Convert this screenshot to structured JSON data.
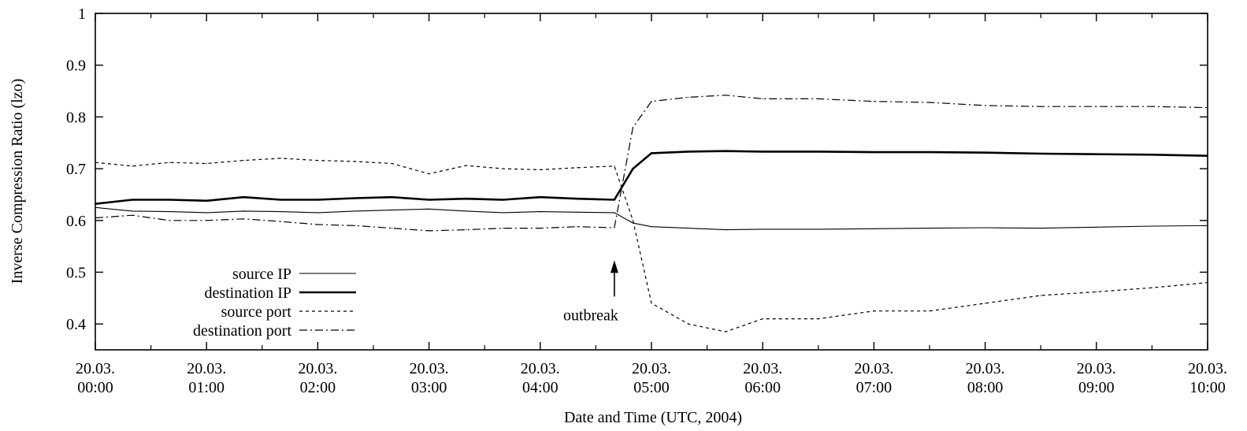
{
  "chart_data": {
    "type": "line",
    "xlabel": "Date and Time (UTC, 2004)",
    "ylabel": "Inverse Compression Ratio (lzo)",
    "xlim": [
      "2004-03-20T00:00",
      "2004-03-20T10:00"
    ],
    "ylim": [
      0.35,
      1.0
    ],
    "grid": false,
    "legend_position": "bottom-left",
    "y_ticks": [
      {
        "value": 0.4,
        "label": "0.4"
      },
      {
        "value": 0.5,
        "label": "0.5"
      },
      {
        "value": 0.6,
        "label": "0.6"
      },
      {
        "value": 0.7,
        "label": "0.7"
      },
      {
        "value": 0.8,
        "label": "0.8"
      },
      {
        "value": 0.9,
        "label": "0.9"
      },
      {
        "value": 1.0,
        "label": "1"
      }
    ],
    "x_ticks": [
      {
        "value": "2004-03-20T00:00",
        "line1": "20.03.",
        "line2": "00:00"
      },
      {
        "value": "2004-03-20T01:00",
        "line1": "20.03.",
        "line2": "01:00"
      },
      {
        "value": "2004-03-20T02:00",
        "line1": "20.03.",
        "line2": "02:00"
      },
      {
        "value": "2004-03-20T03:00",
        "line1": "20.03.",
        "line2": "03:00"
      },
      {
        "value": "2004-03-20T04:00",
        "line1": "20.03.",
        "line2": "04:00"
      },
      {
        "value": "2004-03-20T05:00",
        "line1": "20.03.",
        "line2": "05:00"
      },
      {
        "value": "2004-03-20T06:00",
        "line1": "20.03.",
        "line2": "06:00"
      },
      {
        "value": "2004-03-20T07:00",
        "line1": "20.03.",
        "line2": "07:00"
      },
      {
        "value": "2004-03-20T08:00",
        "line1": "20.03.",
        "line2": "08:00"
      },
      {
        "value": "2004-03-20T09:00",
        "line1": "20.03.",
        "line2": "09:00"
      },
      {
        "value": "2004-03-20T10:00",
        "line1": "20.03.",
        "line2": "10:00"
      }
    ],
    "annotations": [
      {
        "text": "outbreak",
        "x": "2004-03-20T04:40",
        "y": 0.52
      }
    ],
    "series": [
      {
        "name": "source IP",
        "style": "solid-thin",
        "x": [
          "2004-03-20T00:00",
          "2004-03-20T00:20",
          "2004-03-20T00:40",
          "2004-03-20T01:00",
          "2004-03-20T01:20",
          "2004-03-20T01:40",
          "2004-03-20T02:00",
          "2004-03-20T02:20",
          "2004-03-20T02:40",
          "2004-03-20T03:00",
          "2004-03-20T03:20",
          "2004-03-20T03:40",
          "2004-03-20T04:00",
          "2004-03-20T04:20",
          "2004-03-20T04:40",
          "2004-03-20T04:50",
          "2004-03-20T05:00",
          "2004-03-20T05:20",
          "2004-03-20T05:40",
          "2004-03-20T06:00",
          "2004-03-20T06:30",
          "2004-03-20T07:00",
          "2004-03-20T07:30",
          "2004-03-20T08:00",
          "2004-03-20T08:30",
          "2004-03-20T09:00",
          "2004-03-20T09:30",
          "2004-03-20T10:00"
        ],
        "y": [
          0.625,
          0.618,
          0.617,
          0.615,
          0.618,
          0.617,
          0.615,
          0.618,
          0.62,
          0.622,
          0.618,
          0.615,
          0.617,
          0.616,
          0.615,
          0.595,
          0.588,
          0.585,
          0.582,
          0.583,
          0.583,
          0.584,
          0.585,
          0.586,
          0.585,
          0.587,
          0.589,
          0.59
        ]
      },
      {
        "name": "destination IP",
        "style": "solid-thick",
        "x": [
          "2004-03-20T00:00",
          "2004-03-20T00:20",
          "2004-03-20T00:40",
          "2004-03-20T01:00",
          "2004-03-20T01:20",
          "2004-03-20T01:40",
          "2004-03-20T02:00",
          "2004-03-20T02:20",
          "2004-03-20T02:40",
          "2004-03-20T03:00",
          "2004-03-20T03:20",
          "2004-03-20T03:40",
          "2004-03-20T04:00",
          "2004-03-20T04:20",
          "2004-03-20T04:40",
          "2004-03-20T04:50",
          "2004-03-20T05:00",
          "2004-03-20T05:20",
          "2004-03-20T05:40",
          "2004-03-20T06:00",
          "2004-03-20T06:30",
          "2004-03-20T07:00",
          "2004-03-20T07:30",
          "2004-03-20T08:00",
          "2004-03-20T08:30",
          "2004-03-20T09:00",
          "2004-03-20T09:30",
          "2004-03-20T10:00"
        ],
        "y": [
          0.632,
          0.64,
          0.64,
          0.638,
          0.645,
          0.64,
          0.64,
          0.643,
          0.645,
          0.64,
          0.642,
          0.64,
          0.645,
          0.642,
          0.64,
          0.7,
          0.73,
          0.733,
          0.734,
          0.733,
          0.733,
          0.732,
          0.732,
          0.731,
          0.729,
          0.728,
          0.727,
          0.725
        ]
      },
      {
        "name": "source port",
        "style": "dashed",
        "x": [
          "2004-03-20T00:00",
          "2004-03-20T00:20",
          "2004-03-20T00:40",
          "2004-03-20T01:00",
          "2004-03-20T01:20",
          "2004-03-20T01:40",
          "2004-03-20T02:00",
          "2004-03-20T02:20",
          "2004-03-20T02:40",
          "2004-03-20T03:00",
          "2004-03-20T03:20",
          "2004-03-20T03:40",
          "2004-03-20T04:00",
          "2004-03-20T04:20",
          "2004-03-20T04:40",
          "2004-03-20T04:50",
          "2004-03-20T05:00",
          "2004-03-20T05:20",
          "2004-03-20T05:40",
          "2004-03-20T06:00",
          "2004-03-20T06:30",
          "2004-03-20T07:00",
          "2004-03-20T07:30",
          "2004-03-20T08:00",
          "2004-03-20T08:30",
          "2004-03-20T09:00",
          "2004-03-20T09:30",
          "2004-03-20T10:00"
        ],
        "y": [
          0.712,
          0.705,
          0.712,
          0.71,
          0.716,
          0.72,
          0.716,
          0.714,
          0.71,
          0.69,
          0.706,
          0.7,
          0.698,
          0.702,
          0.705,
          0.6,
          0.44,
          0.4,
          0.385,
          0.41,
          0.41,
          0.425,
          0.425,
          0.44,
          0.455,
          0.462,
          0.47,
          0.48
        ]
      },
      {
        "name": "destination port",
        "style": "dash-dot",
        "x": [
          "2004-03-20T00:00",
          "2004-03-20T00:20",
          "2004-03-20T00:40",
          "2004-03-20T01:00",
          "2004-03-20T01:20",
          "2004-03-20T01:40",
          "2004-03-20T02:00",
          "2004-03-20T02:20",
          "2004-03-20T02:40",
          "2004-03-20T03:00",
          "2004-03-20T03:20",
          "2004-03-20T03:40",
          "2004-03-20T04:00",
          "2004-03-20T04:20",
          "2004-03-20T04:40",
          "2004-03-20T04:50",
          "2004-03-20T05:00",
          "2004-03-20T05:20",
          "2004-03-20T05:40",
          "2004-03-20T06:00",
          "2004-03-20T06:30",
          "2004-03-20T07:00",
          "2004-03-20T07:30",
          "2004-03-20T08:00",
          "2004-03-20T08:30",
          "2004-03-20T09:00",
          "2004-03-20T09:30",
          "2004-03-20T10:00"
        ],
        "y": [
          0.605,
          0.61,
          0.6,
          0.6,
          0.603,
          0.598,
          0.592,
          0.59,
          0.585,
          0.58,
          0.582,
          0.585,
          0.585,
          0.588,
          0.586,
          0.78,
          0.83,
          0.838,
          0.842,
          0.835,
          0.835,
          0.83,
          0.828,
          0.822,
          0.82,
          0.82,
          0.82,
          0.818
        ]
      }
    ]
  }
}
